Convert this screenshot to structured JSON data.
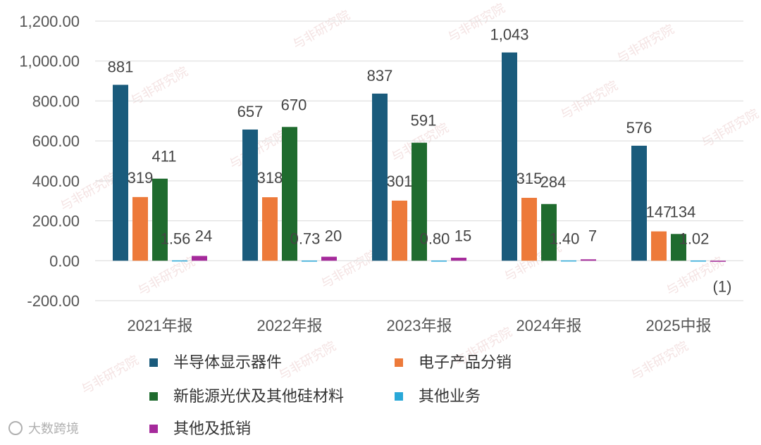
{
  "watermark": "与非研究院",
  "source_mark": "大数跨境",
  "chart_data": {
    "type": "bar",
    "title": "",
    "xlabel": "",
    "ylabel": "",
    "ylim": [
      -200,
      1200
    ],
    "yticks": [
      -200,
      0,
      200,
      400,
      600,
      800,
      1000,
      1200
    ],
    "ytick_labels": [
      "-200.00",
      "0.00",
      "200.00",
      "400.00",
      "600.00",
      "800.00",
      "1,000.00",
      "1,200.00"
    ],
    "grid": true,
    "legend_position": "bottom",
    "categories": [
      "2021年报",
      "2022年报",
      "2023年报",
      "2024年报",
      "2025中报"
    ],
    "series": [
      {
        "name": "半导体显示器件",
        "color": "#1a5b7c",
        "values": [
          881,
          657,
          837,
          1043,
          576
        ],
        "labels": [
          "881",
          "657",
          "837",
          "1,043",
          "576"
        ]
      },
      {
        "name": "电子产品分销",
        "color": "#ed7a3a",
        "values": [
          319,
          318,
          301,
          315,
          147
        ],
        "labels": [
          "319",
          "318",
          "301",
          "315",
          "147"
        ]
      },
      {
        "name": "新能源光伏及其他硅材料",
        "color": "#1f6b2e",
        "values": [
          411,
          670,
          591,
          284,
          134
        ],
        "labels": [
          "411",
          "670",
          "591",
          "284",
          "134"
        ]
      },
      {
        "name": "其他业务",
        "color": "#29a8d8",
        "values": [
          1.56,
          0.73,
          0.8,
          1.4,
          1.02
        ],
        "labels": [
          "1.56",
          "0.73",
          "0.80",
          "1.40",
          "1.02"
        ]
      },
      {
        "name": "其他及抵销",
        "color": "#a52a9b",
        "values": [
          24,
          20,
          15,
          7,
          -1
        ],
        "labels": [
          "24",
          "20",
          "15",
          "7",
          "(1)"
        ]
      }
    ]
  }
}
